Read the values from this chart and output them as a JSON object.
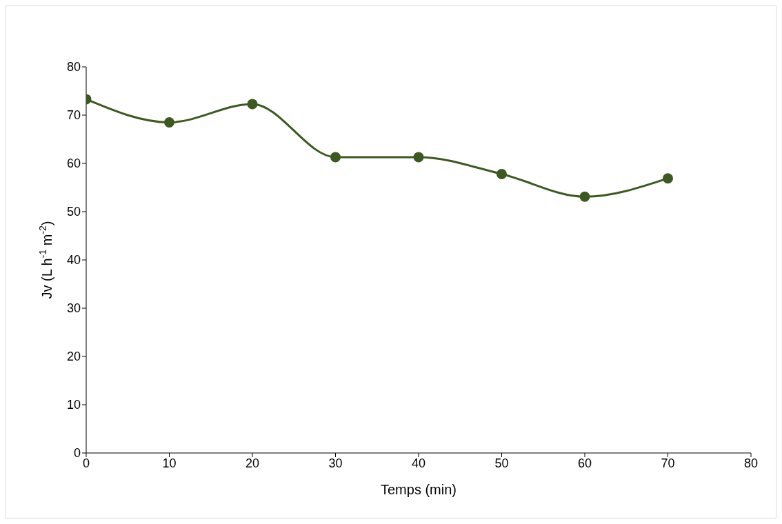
{
  "chart_data": {
    "type": "line",
    "xlabel": "Temps (min)",
    "ylabel": "Jv (L h$^{-1}$ m$^{-2}$)",
    "x": [
      0,
      10,
      20,
      30,
      40,
      50,
      60,
      70
    ],
    "series": [
      {
        "color": "#3b5a20",
        "values": [
          73.3,
          68.5,
          72.3,
          61.3,
          61.3,
          57.8,
          53.1,
          56.9
        ]
      }
    ],
    "xlim": [
      0,
      80
    ],
    "xticks": [
      0,
      10,
      20,
      30,
      40,
      50,
      60,
      70,
      80
    ],
    "ylim": [
      0,
      80
    ],
    "yticks": [
      0,
      10,
      20,
      30,
      40,
      50,
      60,
      70,
      80
    ],
    "grid": false,
    "legend": false,
    "marker": "circle",
    "line_style": "solid"
  }
}
